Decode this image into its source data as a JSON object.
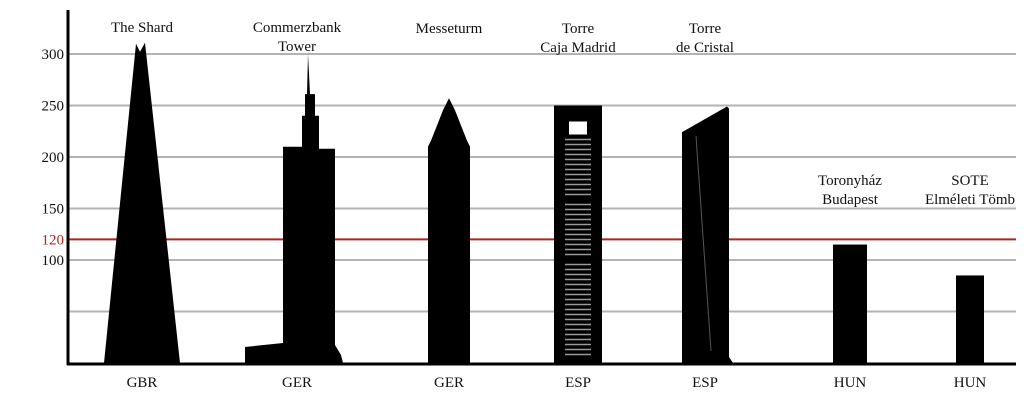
{
  "chart_data": {
    "type": "bar",
    "title": "",
    "xlabel": "",
    "ylabel": "",
    "ylim": [
      0,
      330
    ],
    "yticks": [
      100,
      150,
      200,
      250,
      300
    ],
    "grid": true,
    "reference_line": {
      "value": 120,
      "label": "120",
      "color": "#b22222"
    },
    "categories": [
      "GBR",
      "GER",
      "GER",
      "ESP",
      "ESP",
      "HUN",
      "HUN"
    ],
    "buildings": [
      {
        "name_lines": [
          "The Shard"
        ],
        "country": "GBR",
        "height": 310
      },
      {
        "name_lines": [
          "Commerzbank",
          "Tower"
        ],
        "country": "GER",
        "height": 300
      },
      {
        "name_lines": [
          "Messeturm"
        ],
        "country": "GER",
        "height": 257
      },
      {
        "name_lines": [
          "Torre",
          "Caja Madrid"
        ],
        "country": "ESP",
        "height": 250
      },
      {
        "name_lines": [
          "Torre",
          "de Cristal"
        ],
        "country": "ESP",
        "height": 249
      },
      {
        "name_lines": [
          "Toronyház",
          "Budapest"
        ],
        "country": "HUN",
        "height": 115
      },
      {
        "name_lines": [
          "SOTE",
          "Elméleti Tömb"
        ],
        "country": "HUN",
        "height": 85
      }
    ],
    "colors": {
      "building": "#000000",
      "grid": "#b3b3b3",
      "reference": "#b22222",
      "axis": "#000000"
    }
  }
}
